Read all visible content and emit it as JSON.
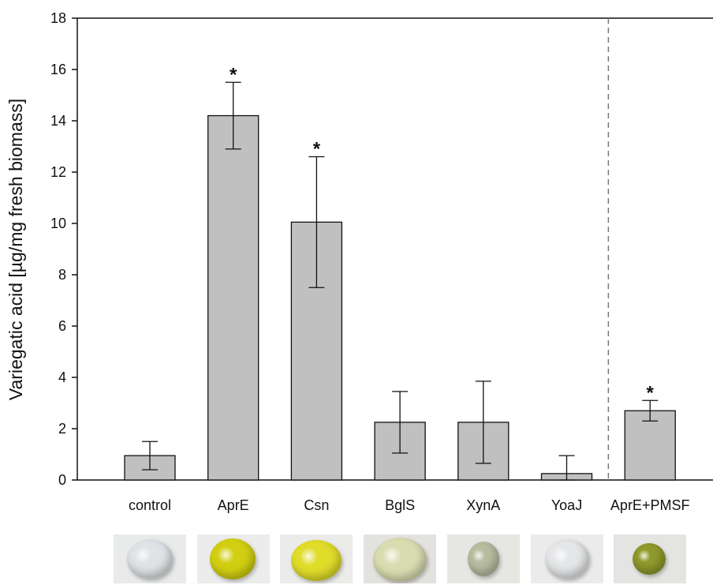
{
  "chart_data": {
    "type": "bar",
    "ylabel": "Variegatic acid [µg/mg fresh biomass]",
    "xlabel": "",
    "ylim": [
      0,
      18
    ],
    "yticks": [
      0,
      2,
      4,
      6,
      8,
      10,
      12,
      14,
      16,
      18
    ],
    "categories": [
      "control",
      "AprE",
      "Csn",
      "BglS",
      "XynA",
      "YoaJ",
      "AprE+PMSF"
    ],
    "values": [
      0.95,
      14.2,
      10.05,
      2.25,
      2.25,
      0.25,
      2.7
    ],
    "errors": [
      0.55,
      1.3,
      2.55,
      1.2,
      1.6,
      0.7,
      0.4
    ],
    "significance": [
      "",
      "*",
      "*",
      "",
      "",
      "",
      "*"
    ],
    "separator_after_category": "YoaJ",
    "bar_color": "#c0c0c0",
    "grid": false
  },
  "photos": [
    {
      "category": "control",
      "drop_color": "#dfe3e6",
      "bg": "#e9eaea"
    },
    {
      "category": "AprE",
      "drop_color": "#d2cf12",
      "bg": "#ececec"
    },
    {
      "category": "Csn",
      "drop_color": "#e0dc2a",
      "bg": "#ebebea"
    },
    {
      "category": "BglS",
      "drop_color": "#d9dbb0",
      "bg": "#e2e2df"
    },
    {
      "category": "XynA",
      "drop_color": "#b9bca0",
      "bg": "#e6e6e3"
    },
    {
      "category": "YoaJ",
      "drop_color": "#e4e6e8",
      "bg": "#ebebeb"
    },
    {
      "category": "AprE+PMSF",
      "drop_color": "#8f9a2c",
      "bg": "#e4e4e2"
    }
  ]
}
